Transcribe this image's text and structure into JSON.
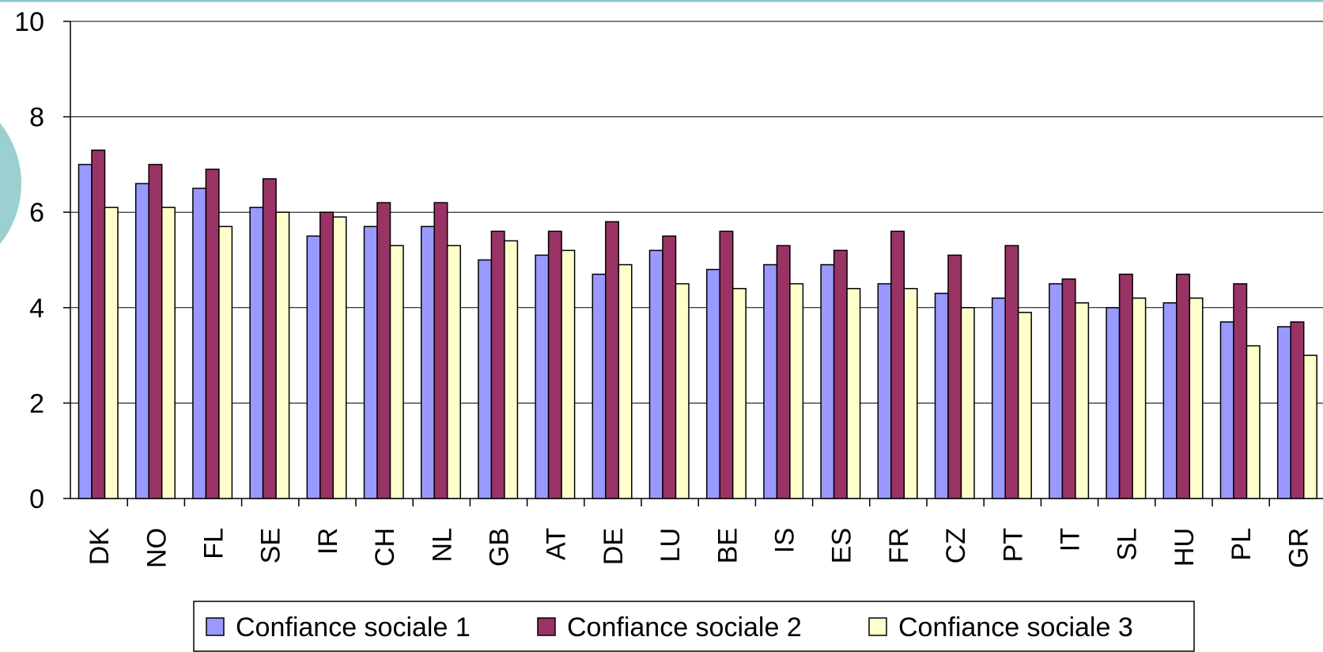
{
  "chart_data": {
    "type": "bar",
    "categories": [
      "DK",
      "NO",
      "FL",
      "SE",
      "IR",
      "CH",
      "NL",
      "GB",
      "AT",
      "DE",
      "LU",
      "BE",
      "IS",
      "ES",
      "FR",
      "CZ",
      "PT",
      "IT",
      "SL",
      "HU",
      "PL",
      "GR"
    ],
    "series": [
      {
        "name": "Confiance sociale 1",
        "color": "#9999ff",
        "values": [
          7.0,
          6.6,
          6.5,
          6.1,
          5.5,
          5.7,
          5.7,
          5.0,
          5.1,
          4.7,
          5.2,
          4.8,
          4.9,
          4.9,
          4.5,
          4.3,
          4.2,
          4.5,
          4.0,
          4.1,
          3.7,
          3.6
        ]
      },
      {
        "name": "Confiance sociale 2",
        "color": "#993366",
        "values": [
          7.3,
          7.0,
          6.9,
          6.7,
          6.0,
          6.2,
          6.2,
          5.6,
          5.6,
          5.8,
          5.5,
          5.6,
          5.3,
          5.2,
          5.6,
          5.1,
          5.3,
          4.6,
          4.7,
          4.7,
          4.5,
          3.7
        ]
      },
      {
        "name": "Confiance sociale 3",
        "color": "#ffffcc",
        "values": [
          6.1,
          6.1,
          5.7,
          6.0,
          5.9,
          5.3,
          5.3,
          5.4,
          5.2,
          4.9,
          4.5,
          4.4,
          4.5,
          4.4,
          4.4,
          4.0,
          3.9,
          4.1,
          4.2,
          4.2,
          3.2,
          3.0
        ]
      }
    ],
    "ylim": [
      0,
      10
    ],
    "yticks": [
      0,
      2,
      4,
      6,
      8,
      10
    ],
    "grid": true,
    "legend": "bottom"
  }
}
